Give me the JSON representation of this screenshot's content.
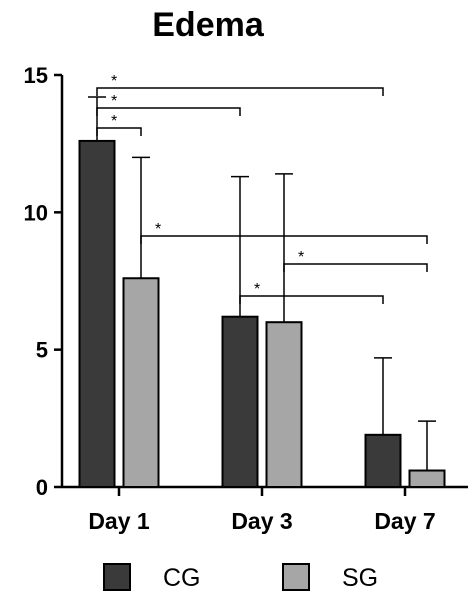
{
  "chart_data": {
    "type": "bar",
    "title": "Edema",
    "xlabel": "",
    "ylabel": "",
    "categories": [
      "Day 1",
      "Day 3",
      "Day 7"
    ],
    "ylim": [
      0,
      15
    ],
    "yticks": [
      0,
      5,
      10,
      15
    ],
    "grid": false,
    "legend_position": "bottom",
    "series": [
      {
        "name": "CG",
        "color": "#3a3a3a",
        "values": [
          12.6,
          6.2,
          1.9
        ],
        "error_upper": [
          14.2,
          11.3,
          4.7
        ]
      },
      {
        "name": "SG",
        "color": "#a6a6a6",
        "values": [
          7.6,
          6.0,
          0.6
        ],
        "error_upper": [
          12.0,
          11.4,
          2.4
        ]
      }
    ],
    "significance": [
      {
        "from": "Day 1 CG",
        "to": "Day 7 CG",
        "label": "*"
      },
      {
        "from": "Day 1 CG",
        "to": "Day 3 CG",
        "label": "*"
      },
      {
        "from": "Day 1 CG",
        "to": "Day 1 SG",
        "label": "*"
      },
      {
        "from": "Day 1 SG",
        "to": "Day 7 SG",
        "label": "*"
      },
      {
        "from": "Day 3 SG",
        "to": "Day 7 SG",
        "label": "*"
      },
      {
        "from": "Day 3 CG",
        "to": "Day 7 CG",
        "label": "*"
      }
    ]
  }
}
